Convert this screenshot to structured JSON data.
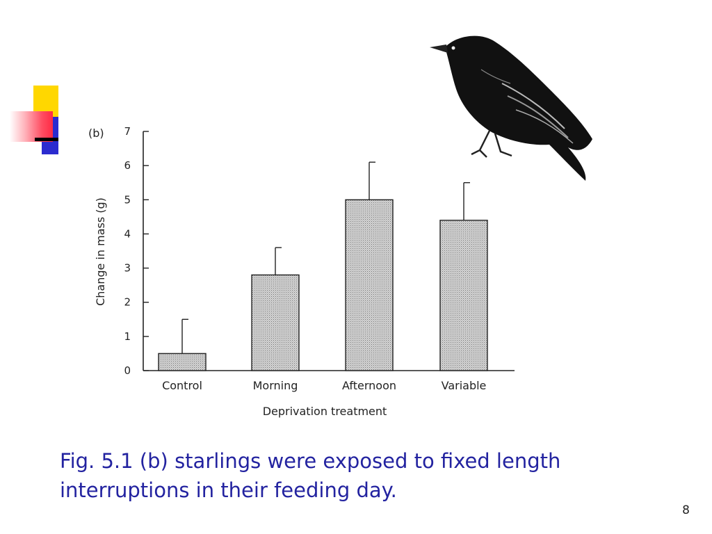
{
  "slide": {
    "caption": "Fig. 5.1 (b) starlings were exposed to fixed length interruptions in their feeding day.",
    "slide_number": "8"
  },
  "colors": {
    "caption": "#2323a0",
    "deco_yellow": "#ffd700",
    "deco_blue": "#2b2bcf",
    "deco_red": "#ff2a45",
    "bar_fill": "#c4c4c4"
  },
  "icons": [
    "starling-illustration"
  ],
  "chart_data": {
    "type": "bar",
    "panel_label": "(b)",
    "categories": [
      "Control",
      "Morning",
      "Afternoon",
      "Variable"
    ],
    "values": [
      0.5,
      2.8,
      5.0,
      4.4
    ],
    "error_upper": [
      1.5,
      3.6,
      6.1,
      5.5
    ],
    "xlabel": "Deprivation treatment",
    "ylabel": "Change in mass (g)",
    "ylim": [
      0,
      7
    ],
    "yticks": [
      "0",
      "1",
      "2",
      "3",
      "4",
      "5",
      "6",
      "7"
    ],
    "grid": false
  }
}
